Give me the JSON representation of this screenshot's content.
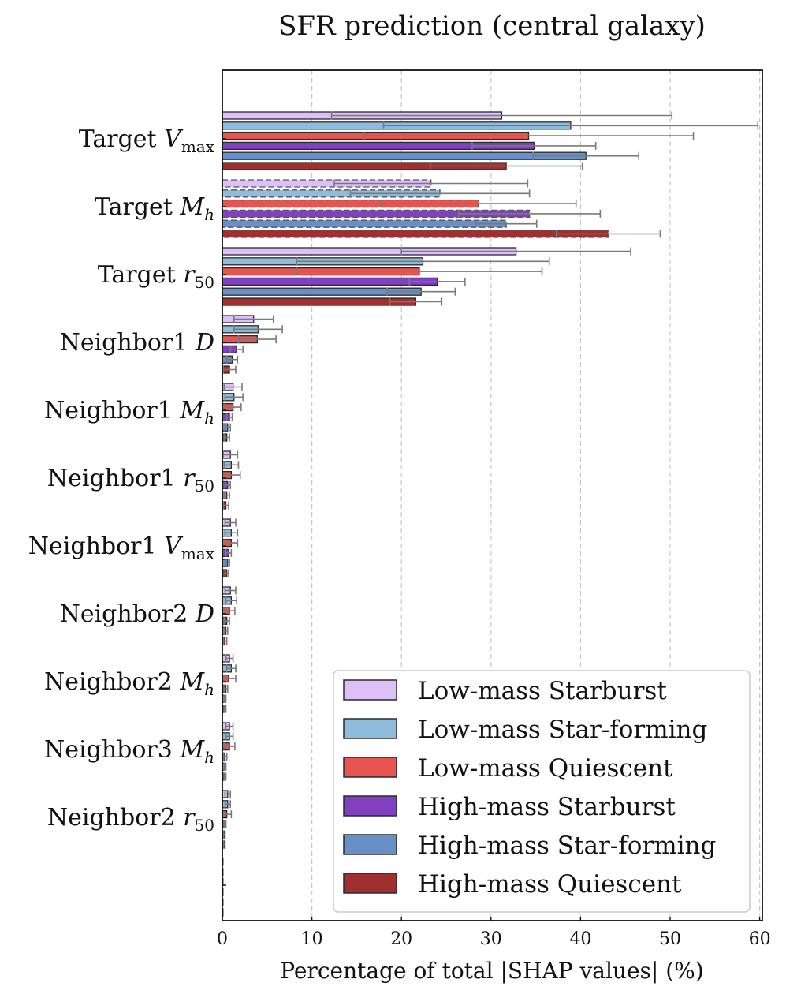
{
  "chart_data": {
    "type": "bar",
    "orientation": "horizontal",
    "title": "SFR prediction (central galaxy)",
    "xlabel": "Percentage of total |SHAP values| (%)",
    "xlim": [
      0,
      60.3
    ],
    "xticks": [
      0,
      10,
      20,
      30,
      40,
      50,
      60
    ],
    "grid": "vertical dashed",
    "legend_position": "lower-right",
    "categories": [
      {
        "base": "Target ",
        "sym": "V",
        "sub": "max"
      },
      {
        "base": "Target ",
        "sym": "M",
        "sub": "h"
      },
      {
        "base": "Target ",
        "sym": "r",
        "sub": "50"
      },
      {
        "base": "Neighbor1 ",
        "sym": "D",
        "sub": ""
      },
      {
        "base": "Neighbor1 ",
        "sym": "M",
        "sub": "h"
      },
      {
        "base": "Neighbor1 ",
        "sym": "r",
        "sub": "50"
      },
      {
        "base": "Neighbor1 ",
        "sym": "V",
        "sub": "max"
      },
      {
        "base": "Neighbor2 ",
        "sym": "D",
        "sub": ""
      },
      {
        "base": "Neighbor2 ",
        "sym": "M",
        "sub": "h"
      },
      {
        "base": "Neighbor3 ",
        "sym": "M",
        "sub": "h"
      },
      {
        "base": "Neighbor2 ",
        "sym": "r",
        "sub": "50"
      },
      {
        "base": "",
        "sym": "",
        "sub": ""
      }
    ],
    "dashed_category_index": 1,
    "series": [
      {
        "name": "Low-mass Starburst",
        "color": "#dcc0f7",
        "values": [
          31.2,
          23.3,
          32.8,
          3.5,
          1.2,
          0.9,
          0.9,
          0.9,
          0.8,
          0.8,
          0.6,
          0.0
        ],
        "errors": [
          19.0,
          10.8,
          12.8,
          2.2,
          1.0,
          0.8,
          0.6,
          0.6,
          0.4,
          0.4,
          0.3,
          0.0
        ]
      },
      {
        "name": "Low-mass Star-forming",
        "color": "#8fbcdc",
        "values": [
          38.9,
          24.3,
          22.4,
          4.0,
          1.3,
          1.0,
          1.0,
          1.0,
          1.0,
          0.8,
          0.6,
          0.0
        ],
        "errors": [
          20.9,
          10.0,
          14.1,
          2.7,
          1.0,
          0.8,
          0.7,
          0.6,
          0.5,
          0.4,
          0.3,
          0.0
        ]
      },
      {
        "name": "Low-mass Quiescent",
        "color": "#e85450",
        "values": [
          34.2,
          28.6,
          22.0,
          3.9,
          1.2,
          1.0,
          1.0,
          0.8,
          0.7,
          0.8,
          0.5,
          0.0
        ],
        "errors": [
          18.4,
          10.9,
          13.7,
          2.1,
          0.9,
          1.0,
          0.7,
          0.6,
          0.8,
          0.6,
          0.5,
          0.0
        ]
      },
      {
        "name": "High-mass Starburst",
        "color": "#8040c0",
        "values": [
          34.8,
          34.3,
          24.0,
          1.6,
          0.8,
          0.6,
          0.7,
          0.5,
          0.4,
          0.3,
          0.3,
          0.0
        ],
        "errors": [
          6.9,
          7.9,
          3.1,
          0.7,
          0.3,
          0.3,
          0.3,
          0.3,
          0.2,
          0.2,
          0.1,
          0.0
        ]
      },
      {
        "name": "High-mass Star-forming",
        "color": "#6890c8",
        "values": [
          40.6,
          31.7,
          22.2,
          1.1,
          0.6,
          0.5,
          0.6,
          0.4,
          0.3,
          0.3,
          0.2,
          0.0
        ],
        "errors": [
          5.9,
          3.4,
          3.8,
          0.6,
          0.3,
          0.3,
          0.2,
          0.2,
          0.1,
          0.1,
          0.1,
          0.0
        ]
      },
      {
        "name": "High-mass Quiescent",
        "color": "#a03030",
        "values": [
          31.7,
          43.1,
          21.6,
          0.8,
          0.5,
          0.4,
          0.5,
          0.3,
          0.3,
          0.3,
          0.2,
          0.0
        ],
        "errors": [
          8.5,
          5.8,
          2.9,
          0.7,
          0.3,
          0.3,
          0.2,
          0.2,
          0.1,
          0.1,
          0.1,
          0.0
        ]
      }
    ]
  }
}
